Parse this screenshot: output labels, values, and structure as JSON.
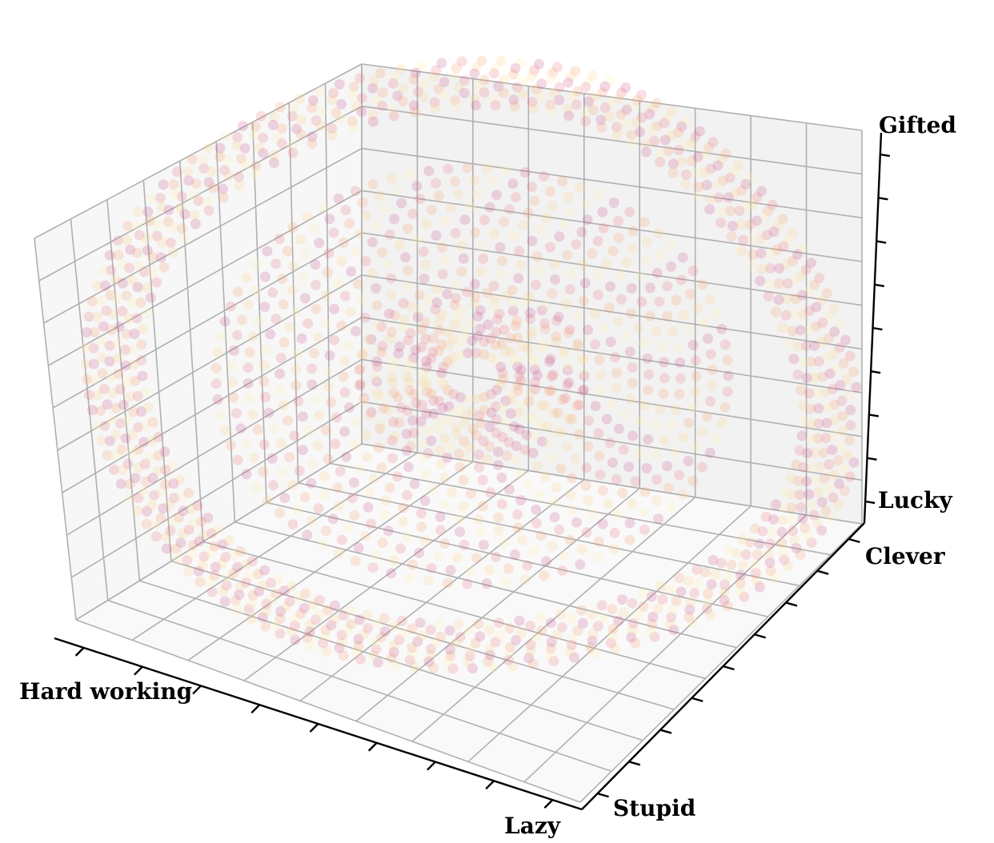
{
  "chart_data": {
    "type": "scatter",
    "dimensions": 3,
    "title": "",
    "axes": {
      "x": {
        "min_label": "Hard working",
        "max_label": "Lazy"
      },
      "y": {
        "min_label": "Clever",
        "max_label": "Stupid"
      },
      "z": {
        "min_label": "Lucky",
        "max_label": "Gifted"
      }
    },
    "grid": true,
    "ticks_per_axis": 9,
    "tick_labels_numeric": false,
    "point_distribution": "concentric spherical shells on a regular grid",
    "shells": [
      {
        "name": "",
        "radius_fraction": 0.3
      },
      {
        "name": "",
        "radius_fraction": 0.55
      },
      {
        "name": "",
        "radius_fraction": 0.95
      }
    ],
    "colormap": [
      "#c94f8a",
      "#e8707e",
      "#f59a6a",
      "#fbd08a",
      "#fff3b0"
    ],
    "point_opacity": 0.22
  }
}
